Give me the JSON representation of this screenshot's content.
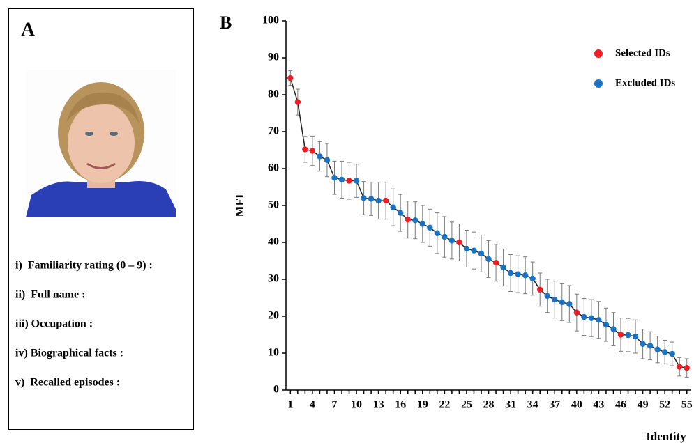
{
  "panel_a": {
    "label": "A",
    "items": [
      "i)  Familiarity rating (0 – 9) :",
      "ii)  Full name :",
      "iii) Occupation :",
      "iv) Biographical facts :",
      "v)  Recalled episodes :"
    ]
  },
  "chart_data": {
    "type": "line",
    "panel_label": "B",
    "x_label": "Identity",
    "y_label": "MFI",
    "x": [
      1,
      2,
      3,
      4,
      5,
      6,
      7,
      8,
      9,
      10,
      11,
      12,
      13,
      14,
      15,
      16,
      17,
      18,
      19,
      20,
      21,
      22,
      23,
      24,
      25,
      26,
      27,
      28,
      29,
      30,
      31,
      32,
      33,
      34,
      35,
      36,
      37,
      38,
      39,
      40,
      41,
      42,
      43,
      44,
      45,
      46,
      47,
      48,
      49,
      50,
      51,
      52,
      53,
      54,
      55
    ],
    "values": [
      84.5,
      78,
      65.2,
      64.8,
      63.3,
      62.3,
      57.5,
      57,
      56.7,
      56.7,
      52,
      51.8,
      51.3,
      51.3,
      49.5,
      48,
      46.2,
      46,
      45,
      44,
      42.5,
      41.5,
      40.5,
      40,
      38.3,
      37.8,
      37,
      35.5,
      34.5,
      33.2,
      31.7,
      31.4,
      31.1,
      30.2,
      27.2,
      25.5,
      24.5,
      23.8,
      23.3,
      21,
      19.8,
      19.5,
      19,
      17.7,
      16.5,
      15,
      14.9,
      14.5,
      12.5,
      12,
      11,
      10.3,
      9.8,
      6.3,
      6
    ],
    "errors": [
      2,
      3.5,
      3.5,
      4,
      4,
      4.5,
      4.5,
      5,
      5,
      4.5,
      4.5,
      4.5,
      5,
      5,
      5,
      5,
      5,
      5,
      5,
      5,
      5.5,
      5.5,
      5,
      5,
      5,
      5,
      5,
      5,
      5,
      5,
      5,
      5,
      5,
      4.5,
      4.5,
      4.5,
      5,
      5,
      5,
      5,
      5,
      5,
      5,
      4.5,
      4.5,
      4.5,
      4.5,
      4.5,
      4,
      3.8,
      3.6,
      3.2,
      3.2,
      2.5,
      2.5
    ],
    "line_color": "#222222",
    "series": [
      {
        "name": "Selected IDs",
        "color": "#ee1c24",
        "ids": [
          1,
          2,
          3,
          4,
          9,
          14,
          17,
          24,
          29,
          35,
          40,
          46,
          54,
          55
        ]
      },
      {
        "name": "Excluded IDs",
        "color": "#1a73c2"
      }
    ],
    "xlim": [
      0.4,
      55.5
    ],
    "ylim": [
      0,
      100
    ],
    "xticks": [
      1,
      4,
      7,
      10,
      13,
      16,
      19,
      22,
      25,
      28,
      31,
      34,
      37,
      40,
      43,
      46,
      49,
      52,
      55
    ],
    "yticks": [
      0,
      10,
      20,
      30,
      40,
      50,
      60,
      70,
      80,
      90,
      100
    ]
  }
}
